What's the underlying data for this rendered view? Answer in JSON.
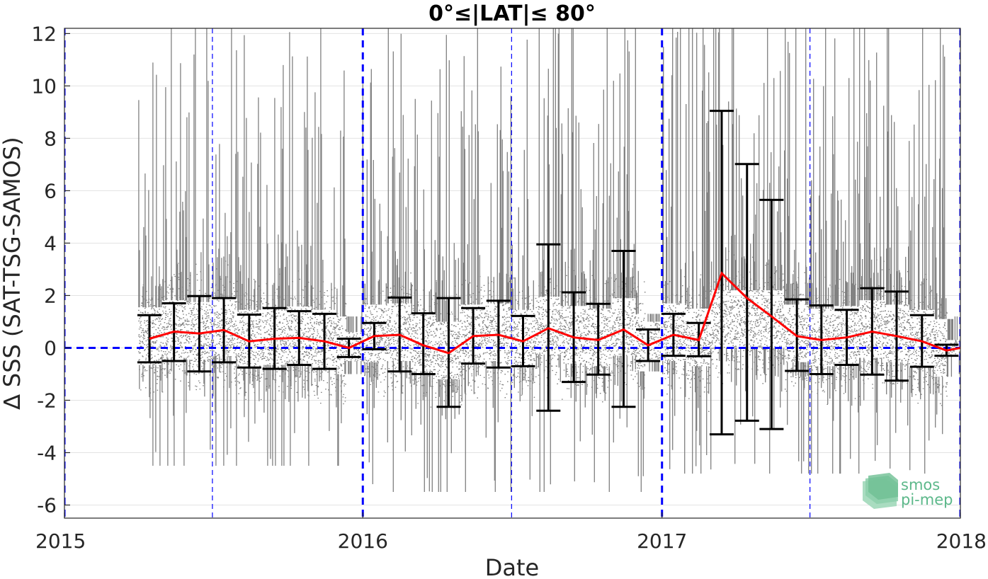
{
  "chart_data": {
    "type": "scatter",
    "title": "0°≤|LAT|≤ 80°",
    "xlabel": "Date",
    "ylabel": "∆ SSS (SAT-TSG-SAMOS)",
    "xlim": [
      "2015-01-01",
      "2018-01-01"
    ],
    "ylim": [
      -6.5,
      12.2
    ],
    "x_tick_labels": [
      "2015",
      "2016",
      "2017",
      "2018"
    ],
    "y_tick_labels": [
      "12",
      "10",
      "8",
      "6",
      "4",
      "2",
      "0",
      "-2",
      "-4",
      "-6"
    ],
    "y_ticks": [
      12,
      10,
      8,
      6,
      4,
      2,
      0,
      -2,
      -4,
      -6
    ],
    "grid": true,
    "zero_line": {
      "y": 0,
      "color": "#0000ff",
      "style": "dashed"
    },
    "year_boundaries": [
      "2015-01-01",
      "2016-01-01",
      "2017-01-01",
      "2018-01-01"
    ],
    "mid_year_lines": [
      "2015-07-01",
      "2016-07-01",
      "2017-07-01"
    ],
    "scatter_color": "#808080",
    "scatter_data_ranges": [
      {
        "start": "2015-04-01",
        "end": "2015-12-10",
        "low": -4.5,
        "high": 12.2
      },
      {
        "start": "2015-12-10",
        "end": "2015-12-31",
        "low": -0.5,
        "high": 0.6
      },
      {
        "start": "2016-01-01",
        "end": "2016-12-10",
        "low": -5.5,
        "high": 12.2
      },
      {
        "start": "2016-12-15",
        "end": "2016-12-31",
        "low": -0.5,
        "high": 1.0
      },
      {
        "start": "2017-01-01",
        "end": "2017-12-15",
        "low": -4.8,
        "high": 12.2
      },
      {
        "start": "2017-12-15",
        "end": "2017-12-31",
        "low": -0.3,
        "high": 0.3
      }
    ],
    "series": [
      {
        "type": "line",
        "color": "#ff0000",
        "x": [
          "2015-04-15",
          "2015-05-15",
          "2015-06-15",
          "2015-07-15",
          "2015-08-15",
          "2015-09-15",
          "2015-10-15",
          "2015-11-15",
          "2015-12-15",
          "2016-01-15",
          "2016-02-15",
          "2016-03-15",
          "2016-04-15",
          "2016-05-15",
          "2016-06-15",
          "2016-07-15",
          "2016-08-15",
          "2016-09-15",
          "2016-10-15",
          "2016-11-15",
          "2016-12-15",
          "2017-01-15",
          "2017-02-15",
          "2017-03-15",
          "2017-04-15",
          "2017-05-15",
          "2017-06-15",
          "2017-07-15",
          "2017-08-15",
          "2017-09-15",
          "2017-10-15",
          "2017-11-15",
          "2017-12-15",
          "2018-01-01"
        ],
        "y": [
          0.35,
          0.62,
          0.55,
          0.68,
          0.25,
          0.35,
          0.38,
          0.25,
          0.0,
          0.45,
          0.5,
          0.1,
          -0.2,
          0.45,
          0.5,
          0.25,
          0.75,
          0.4,
          0.3,
          0.7,
          0.1,
          0.5,
          0.3,
          2.85,
          1.9,
          1.2,
          0.45,
          0.3,
          0.4,
          0.62,
          0.45,
          0.25,
          -0.1,
          0.0
        ]
      }
    ],
    "error_bars": [
      {
        "x": "2015-04-15",
        "lower": -0.55,
        "upper": 1.25
      },
      {
        "x": "2015-05-15",
        "lower": -0.5,
        "upper": 1.7
      },
      {
        "x": "2015-06-15",
        "lower": -0.9,
        "upper": 1.98
      },
      {
        "x": "2015-07-15",
        "lower": -0.55,
        "upper": 1.9
      },
      {
        "x": "2015-08-15",
        "lower": -0.75,
        "upper": 1.27
      },
      {
        "x": "2015-09-15",
        "lower": -0.8,
        "upper": 1.52
      },
      {
        "x": "2015-10-15",
        "lower": -0.65,
        "upper": 1.4
      },
      {
        "x": "2015-11-15",
        "lower": -0.8,
        "upper": 1.3
      },
      {
        "x": "2015-12-15",
        "lower": -0.35,
        "upper": 0.35
      },
      {
        "x": "2016-01-15",
        "lower": -0.05,
        "upper": 0.95
      },
      {
        "x": "2016-02-15",
        "lower": -0.9,
        "upper": 1.92
      },
      {
        "x": "2016-03-15",
        "lower": -1.0,
        "upper": 1.32
      },
      {
        "x": "2016-04-15",
        "lower": -2.25,
        "upper": 1.9
      },
      {
        "x": "2016-05-15",
        "lower": -0.6,
        "upper": 1.52
      },
      {
        "x": "2016-06-15",
        "lower": -0.75,
        "upper": 1.8
      },
      {
        "x": "2016-07-15",
        "lower": -0.7,
        "upper": 1.22
      },
      {
        "x": "2016-08-15",
        "lower": -2.4,
        "upper": 3.95
      },
      {
        "x": "2016-09-15",
        "lower": -1.3,
        "upper": 2.12
      },
      {
        "x": "2016-10-15",
        "lower": -1.02,
        "upper": 1.68
      },
      {
        "x": "2016-11-15",
        "lower": -2.25,
        "upper": 3.7
      },
      {
        "x": "2016-12-15",
        "lower": -0.5,
        "upper": 0.7
      },
      {
        "x": "2017-01-15",
        "lower": -0.3,
        "upper": 1.3
      },
      {
        "x": "2017-02-15",
        "lower": -0.32,
        "upper": 0.95
      },
      {
        "x": "2017-03-15",
        "lower": -3.3,
        "upper": 9.05
      },
      {
        "x": "2017-04-15",
        "lower": -2.78,
        "upper": 7.02
      },
      {
        "x": "2017-05-15",
        "lower": -3.1,
        "upper": 5.65
      },
      {
        "x": "2017-06-15",
        "lower": -0.88,
        "upper": 1.85
      },
      {
        "x": "2017-07-15",
        "lower": -1.0,
        "upper": 1.62
      },
      {
        "x": "2017-08-15",
        "lower": -0.65,
        "upper": 1.45
      },
      {
        "x": "2017-09-15",
        "lower": -1.02,
        "upper": 2.28
      },
      {
        "x": "2017-10-15",
        "lower": -1.25,
        "upper": 2.15
      },
      {
        "x": "2017-11-15",
        "lower": -0.72,
        "upper": 1.25
      },
      {
        "x": "2017-12-15",
        "lower": -0.3,
        "upper": 0.12
      }
    ]
  },
  "logo": {
    "line1": "smos",
    "line2": "pi-mep"
  }
}
